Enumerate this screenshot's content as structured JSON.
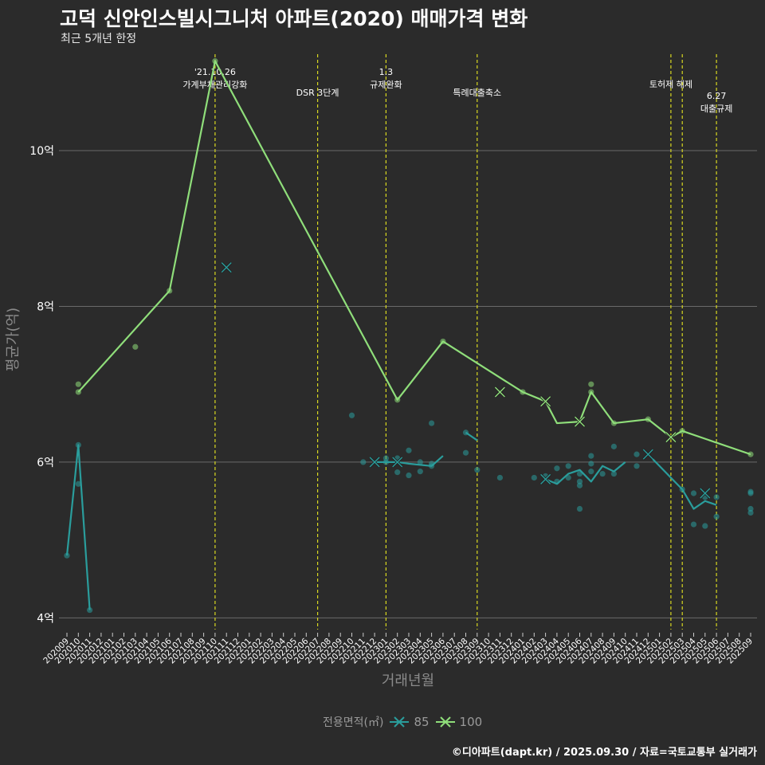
{
  "header": {
    "title": "고덕 신안인스빌시그니처 아파트(2020) 매매가격 변화",
    "subtitle": "최근 5개년 한정"
  },
  "caption": "©디아파트(dapt.kr) / 2025.09.30 / 자료=국토교통부 실거래가",
  "legend": {
    "title": "전용면적(㎡)",
    "items": [
      {
        "label": "85",
        "color": "#2a9d9c"
      },
      {
        "label": "100",
        "color": "#8fde7a"
      }
    ]
  },
  "colors": {
    "background": "#2b2b2b",
    "grid": "#6a6a6a",
    "event_line": "#d8d820",
    "series_85": "#2a9d9c",
    "series_100": "#8fde7a"
  },
  "chart_data": {
    "type": "line",
    "title": "고덕 신안인스빌시그니처 아파트(2020) 매매가격 변화",
    "xlabel": "거래년월",
    "ylabel": "평균가(억)",
    "ylim": [
      3.85,
      11.3
    ],
    "y_ticks": [
      {
        "value": 4,
        "label": "4억"
      },
      {
        "value": 6,
        "label": "6억"
      },
      {
        "value": 8,
        "label": "8억"
      },
      {
        "value": 10,
        "label": "10억"
      }
    ],
    "categories": [
      "202009",
      "202010",
      "202011",
      "202012",
      "202101",
      "202102",
      "202103",
      "202104",
      "202105",
      "202106",
      "202107",
      "202108",
      "202109",
      "202110",
      "202111",
      "202112",
      "202201",
      "202202",
      "202203",
      "202204",
      "202205",
      "202206",
      "202207",
      "202208",
      "202209",
      "202210",
      "202211",
      "202212",
      "202301",
      "202302",
      "202303",
      "202304",
      "202305",
      "202306",
      "202307",
      "202308",
      "202309",
      "202310",
      "202311",
      "202312",
      "202401",
      "202402",
      "202403",
      "202404",
      "202405",
      "202406",
      "202407",
      "202408",
      "202409",
      "202410",
      "202411",
      "202412",
      "202501",
      "202502",
      "202503",
      "202504",
      "202505",
      "202506",
      "202507",
      "202508",
      "202509"
    ],
    "events": [
      {
        "x": "202110",
        "label": "'21.10.26\n가계부채관리강화",
        "level": 0
      },
      {
        "x": "202207",
        "label": "DSR 3단계",
        "level": 1
      },
      {
        "x": "202301",
        "label": "1.3\n규제완화",
        "level": 0
      },
      {
        "x": "202309",
        "label": "특례대출축소",
        "level": 1
      },
      {
        "x": "202502",
        "label": "토허제 해제",
        "level": 0.6
      },
      {
        "x": "202503",
        "label": "",
        "level": 0
      },
      {
        "x": "202506",
        "label": "6.27\n대출규제",
        "level": 1.15
      }
    ],
    "series": [
      {
        "name": "85",
        "color": "#2a9d9c",
        "line": [
          {
            "x": "202009",
            "y": 4.8
          },
          {
            "x": "202010",
            "y": 6.22
          },
          {
            "x": "202011",
            "y": 4.1
          },
          null,
          {
            "x": "202212",
            "y": 6.0
          },
          {
            "x": "202302",
            "y": 6.0
          },
          {
            "x": "202303",
            "y": 5.98
          },
          {
            "x": "202305",
            "y": 5.95
          },
          {
            "x": "202306",
            "y": 6.08
          },
          null,
          {
            "x": "202308",
            "y": 6.38
          },
          {
            "x": "202309",
            "y": 6.28
          },
          null,
          {
            "x": "202403",
            "y": 5.78
          },
          {
            "x": "202404",
            "y": 5.72
          },
          {
            "x": "202405",
            "y": 5.85
          },
          {
            "x": "202406",
            "y": 5.9
          },
          {
            "x": "202407",
            "y": 5.75
          },
          {
            "x": "202408",
            "y": 5.95
          },
          {
            "x": "202409",
            "y": 5.88
          },
          {
            "x": "202410",
            "y": 6.0
          },
          null,
          {
            "x": "202412",
            "y": 6.1
          },
          {
            "x": "202503",
            "y": 5.65
          },
          {
            "x": "202504",
            "y": 5.4
          },
          {
            "x": "202505",
            "y": 5.5
          },
          {
            "x": "202506",
            "y": 5.45
          }
        ],
        "points": [
          {
            "x": "202009",
            "y": 4.8
          },
          {
            "x": "202010",
            "y": 6.22
          },
          {
            "x": "202010",
            "y": 5.72
          },
          {
            "x": "202011",
            "y": 4.1
          },
          {
            "x": "202210",
            "y": 6.6
          },
          {
            "x": "202211",
            "y": 6.0
          },
          {
            "x": "202301",
            "y": 6.05
          },
          {
            "x": "202301",
            "y": 6.0
          },
          {
            "x": "202302",
            "y": 6.05
          },
          {
            "x": "202302",
            "y": 5.87
          },
          {
            "x": "202303",
            "y": 6.15
          },
          {
            "x": "202303",
            "y": 5.83
          },
          {
            "x": "202304",
            "y": 6.0
          },
          {
            "x": "202304",
            "y": 5.88
          },
          {
            "x": "202305",
            "y": 6.5
          },
          {
            "x": "202305",
            "y": 5.95
          },
          {
            "x": "202305",
            "y": 5.98
          },
          {
            "x": "202308",
            "y": 6.38
          },
          {
            "x": "202308",
            "y": 6.12
          },
          {
            "x": "202309",
            "y": 5.9
          },
          {
            "x": "202311",
            "y": 5.8
          },
          {
            "x": "202402",
            "y": 5.8
          },
          {
            "x": "202403",
            "y": 5.82
          },
          {
            "x": "202404",
            "y": 5.75
          },
          {
            "x": "202404",
            "y": 5.92
          },
          {
            "x": "202405",
            "y": 5.95
          },
          {
            "x": "202405",
            "y": 5.8
          },
          {
            "x": "202406",
            "y": 5.85
          },
          {
            "x": "202406",
            "y": 5.75
          },
          {
            "x": "202406",
            "y": 5.7
          },
          {
            "x": "202406",
            "y": 5.4
          },
          {
            "x": "202407",
            "y": 6.08
          },
          {
            "x": "202407",
            "y": 5.98
          },
          {
            "x": "202407",
            "y": 5.88
          },
          {
            "x": "202408",
            "y": 5.85
          },
          {
            "x": "202409",
            "y": 6.2
          },
          {
            "x": "202409",
            "y": 5.85
          },
          {
            "x": "202411",
            "y": 6.1
          },
          {
            "x": "202411",
            "y": 5.95
          },
          {
            "x": "202503",
            "y": 5.65
          },
          {
            "x": "202504",
            "y": 5.6
          },
          {
            "x": "202504",
            "y": 5.2
          },
          {
            "x": "202505",
            "y": 5.55
          },
          {
            "x": "202505",
            "y": 5.18
          },
          {
            "x": "202506",
            "y": 5.55
          },
          {
            "x": "202506",
            "y": 5.3
          },
          {
            "x": "202509",
            "y": 5.62
          },
          {
            "x": "202509",
            "y": 5.6
          },
          {
            "x": "202509",
            "y": 5.4
          },
          {
            "x": "202509",
            "y": 5.35
          }
        ],
        "crosses": [
          {
            "x": "202111",
            "y": 8.5
          },
          {
            "x": "202212",
            "y": 6.0
          },
          {
            "x": "202302",
            "y": 6.0
          },
          {
            "x": "202403",
            "y": 5.78
          },
          {
            "x": "202412",
            "y": 6.1
          },
          {
            "x": "202505",
            "y": 5.6
          }
        ]
      },
      {
        "name": "100",
        "color": "#8fde7a",
        "line": [
          {
            "x": "202010",
            "y": 6.9
          },
          {
            "x": "202106",
            "y": 8.2
          },
          {
            "x": "202110",
            "y": 11.15
          },
          {
            "x": "202302",
            "y": 6.8
          },
          {
            "x": "202306",
            "y": 7.55
          },
          {
            "x": "202401",
            "y": 6.9
          },
          {
            "x": "202403",
            "y": 6.78
          },
          {
            "x": "202404",
            "y": 6.5
          },
          {
            "x": "202406",
            "y": 6.52
          },
          {
            "x": "202407",
            "y": 6.9
          },
          {
            "x": "202409",
            "y": 6.5
          },
          {
            "x": "202412",
            "y": 6.55
          },
          {
            "x": "202502",
            "y": 6.32
          },
          {
            "x": "202503",
            "y": 6.4
          },
          {
            "x": "202509",
            "y": 6.1
          }
        ],
        "points": [
          {
            "x": "202010",
            "y": 7.0
          },
          {
            "x": "202010",
            "y": 6.9
          },
          {
            "x": "202103",
            "y": 7.48
          },
          {
            "x": "202106",
            "y": 8.2
          },
          {
            "x": "202110",
            "y": 11.15
          },
          {
            "x": "202302",
            "y": 6.8
          },
          {
            "x": "202306",
            "y": 7.55
          },
          {
            "x": "202401",
            "y": 6.9
          },
          {
            "x": "202407",
            "y": 7.0
          },
          {
            "x": "202407",
            "y": 6.9
          },
          {
            "x": "202409",
            "y": 6.5
          },
          {
            "x": "202412",
            "y": 6.55
          },
          {
            "x": "202503",
            "y": 6.4
          },
          {
            "x": "202509",
            "y": 6.1
          }
        ],
        "crosses": [
          {
            "x": "202311",
            "y": 6.9
          },
          {
            "x": "202403",
            "y": 6.78
          },
          {
            "x": "202406",
            "y": 6.52
          },
          {
            "x": "202502",
            "y": 6.32
          }
        ]
      }
    ]
  }
}
